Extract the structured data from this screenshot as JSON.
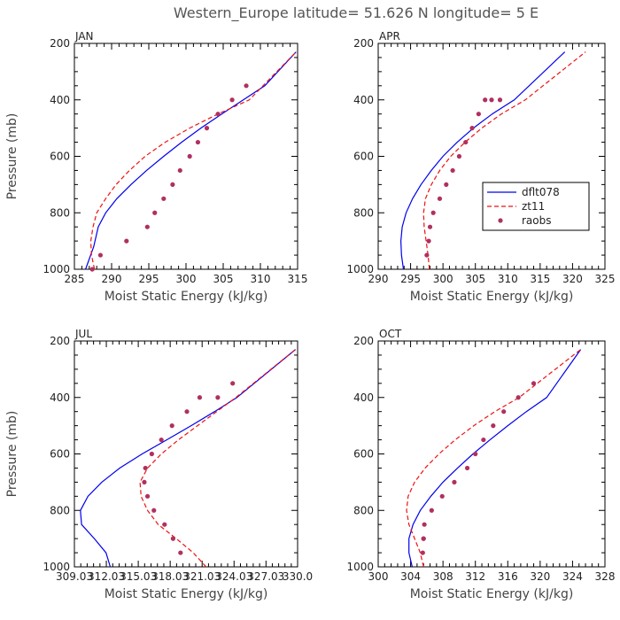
{
  "title": "Western_Europe  latitude= 51.626 N longitude= 5 E",
  "colors": {
    "dflt078": "#0000ee",
    "zt11": "#ee1111",
    "raobs": "#b03060"
  },
  "chart_data": [
    {
      "type": "line",
      "panel": "JAN",
      "xlabel": "Moist Static Energy (kJ/kg)",
      "ylabel": "Pressure (mb)",
      "xlim": [
        285,
        315
      ],
      "ylim": [
        1000,
        200
      ],
      "xticks": [
        285,
        290,
        295,
        300,
        305,
        310,
        315
      ],
      "xtick_labels": [
        "285",
        "290",
        "295",
        "300",
        "305",
        "310",
        "315"
      ],
      "yticks": [
        200,
        400,
        600,
        800,
        1000
      ],
      "ytick_labels": [
        "200",
        "400",
        "600",
        "800",
        "1000"
      ],
      "series": [
        {
          "name": "dflt078",
          "style": "solid",
          "x": [
            286.5,
            287.6,
            288.2,
            289.2,
            290.7,
            292.6,
            294.7,
            297.0,
            299.4,
            302.0,
            304.8,
            307.7,
            310.6,
            314.8
          ],
          "y": [
            1000,
            920,
            850,
            800,
            750,
            700,
            650,
            600,
            550,
            500,
            450,
            400,
            350,
            230
          ]
        },
        {
          "name": "zt11",
          "style": "dashed",
          "x": [
            287.7,
            287.3,
            287.2,
            287.5,
            288.0,
            289.2,
            290.6,
            292.4,
            294.5,
            297.2,
            300.5,
            304.3,
            308.5,
            314.8
          ],
          "y": [
            1000,
            950,
            900,
            850,
            800,
            750,
            700,
            650,
            600,
            550,
            500,
            450,
            400,
            230
          ]
        },
        {
          "name": "raobs",
          "style": "markers",
          "x": [
            287.4,
            288.5,
            292.0,
            294.8,
            295.8,
            297.0,
            298.2,
            299.2,
            300.5,
            301.6,
            302.8,
            304.3,
            306.2,
            308.1
          ],
          "y": [
            1000,
            950,
            900,
            850,
            800,
            750,
            700,
            650,
            600,
            550,
            500,
            450,
            400,
            350
          ]
        }
      ]
    },
    {
      "type": "line",
      "panel": "APR",
      "xlabel": "Moist Static Energy (kJ/kg)",
      "ylabel": "",
      "xlim": [
        290,
        325
      ],
      "ylim": [
        1000,
        200
      ],
      "xticks": [
        290,
        295,
        300,
        305,
        310,
        315,
        320,
        325
      ],
      "xtick_labels": [
        "290",
        "295",
        "300",
        "305",
        "310",
        "315",
        "320",
        "325"
      ],
      "yticks": [
        200,
        400,
        600,
        800,
        1000
      ],
      "ytick_labels": [
        "200",
        "400",
        "600",
        "800",
        "1000"
      ],
      "legend": {
        "placement": "center-right",
        "entries": [
          "dflt078",
          "zt11",
          "raobs"
        ]
      },
      "series": [
        {
          "name": "dflt078",
          "style": "solid",
          "x": [
            293.9,
            293.6,
            293.5,
            293.7,
            294.3,
            295.3,
            296.6,
            298.2,
            300.0,
            302.2,
            304.7,
            307.6,
            311.0,
            318.8
          ],
          "y": [
            1000,
            950,
            900,
            850,
            800,
            750,
            700,
            650,
            600,
            550,
            500,
            450,
            400,
            230
          ]
        },
        {
          "name": "zt11",
          "style": "dashed",
          "x": [
            297.9,
            297.7,
            297.4,
            297.1,
            297.0,
            297.3,
            298.2,
            299.5,
            301.2,
            303.4,
            306.0,
            309.0,
            312.7,
            322.0
          ],
          "y": [
            1000,
            950,
            900,
            850,
            800,
            750,
            700,
            650,
            600,
            550,
            500,
            450,
            400,
            230
          ]
        },
        {
          "name": "raobs",
          "style": "markers",
          "x": [
            297.5,
            297.8,
            298.0,
            298.5,
            299.5,
            300.5,
            301.5,
            302.5,
            303.5,
            304.5,
            305.5,
            306.5,
            307.5,
            308.8
          ],
          "y": [
            950,
            900,
            850,
            800,
            750,
            700,
            650,
            600,
            550,
            500,
            450,
            400,
            400,
            400
          ]
        }
      ]
    },
    {
      "type": "line",
      "panel": "JUL",
      "xlabel": "Moist Static Energy (kJ/kg)",
      "ylabel": "Pressure (mb)",
      "xlim": [
        309.03,
        330.0
      ],
      "ylim": [
        1000,
        200
      ],
      "xticks": [
        309.03,
        312.03,
        315.03,
        318.03,
        321.03,
        324.03,
        327.03,
        330.0
      ],
      "xtick_labels": [
        "309.03",
        "312.03",
        "315.03",
        "318.03",
        "321.03",
        "324.03",
        "327.03",
        "330.0"
      ],
      "yticks": [
        200,
        400,
        600,
        800,
        1000
      ],
      "ytick_labels": [
        "200",
        "400",
        "600",
        "800",
        "1000"
      ],
      "series": [
        {
          "name": "dflt078",
          "style": "solid",
          "x": [
            312.4,
            312.0,
            310.9,
            309.7,
            309.6,
            310.3,
            311.6,
            313.3,
            315.4,
            317.7,
            320.0,
            322.2,
            324.3,
            329.8
          ],
          "y": [
            1000,
            950,
            900,
            850,
            800,
            750,
            700,
            650,
            600,
            550,
            500,
            450,
            400,
            230
          ]
        },
        {
          "name": "zt11",
          "style": "dashed",
          "x": [
            321.4,
            320.2,
            318.6,
            316.9,
            315.9,
            315.3,
            315.2,
            315.9,
            317.2,
            318.8,
            320.6,
            322.4,
            324.2,
            329.8
          ],
          "y": [
            1000,
            950,
            900,
            850,
            800,
            750,
            700,
            650,
            600,
            550,
            500,
            450,
            400,
            230
          ]
        },
        {
          "name": "raobs",
          "style": "markers",
          "x": [
            319.0,
            318.3,
            317.5,
            316.5,
            315.9,
            315.6,
            315.7,
            316.3,
            317.2,
            318.2,
            319.6,
            320.8,
            322.5,
            323.9
          ],
          "y": [
            950,
            900,
            850,
            800,
            750,
            700,
            650,
            600,
            550,
            500,
            450,
            400,
            400,
            350
          ]
        }
      ]
    },
    {
      "type": "line",
      "panel": "OCT",
      "xlabel": "Moist Static Energy (kJ/kg)",
      "ylabel": "",
      "xlim": [
        300,
        328
      ],
      "ylim": [
        1000,
        200
      ],
      "xticks": [
        300,
        304,
        308,
        312,
        316,
        320,
        324,
        328
      ],
      "xtick_labels": [
        "300",
        "304",
        "308",
        "312",
        "316",
        "320",
        "324",
        "328"
      ],
      "yticks": [
        200,
        400,
        600,
        800,
        1000
      ],
      "ytick_labels": [
        "200",
        "400",
        "600",
        "800",
        "1000"
      ],
      "series": [
        {
          "name": "dflt078",
          "style": "solid",
          "x": [
            304.2,
            303.8,
            303.8,
            304.3,
            305.2,
            306.5,
            308.0,
            309.8,
            311.7,
            313.8,
            316.0,
            318.3,
            320.8,
            325.0
          ],
          "y": [
            1000,
            950,
            900,
            850,
            800,
            750,
            700,
            650,
            600,
            550,
            500,
            450,
            400,
            230
          ]
        },
        {
          "name": "zt11",
          "style": "dashed",
          "x": [
            305.6,
            305.2,
            304.5,
            303.8,
            303.5,
            303.7,
            304.5,
            305.8,
            307.5,
            309.5,
            311.8,
            314.4,
            317.4,
            325.0
          ],
          "y": [
            1000,
            950,
            900,
            850,
            800,
            750,
            700,
            650,
            600,
            550,
            500,
            450,
            400,
            230
          ]
        },
        {
          "name": "raobs",
          "style": "markers",
          "x": [
            305.5,
            305.6,
            305.6,
            305.7,
            306.6,
            307.9,
            309.4,
            311.0,
            312.0,
            313.0,
            314.2,
            315.5,
            317.3,
            319.2
          ],
          "y": [
            950,
            900,
            900,
            850,
            800,
            750,
            700,
            650,
            600,
            550,
            500,
            450,
            400,
            350
          ]
        }
      ]
    }
  ]
}
